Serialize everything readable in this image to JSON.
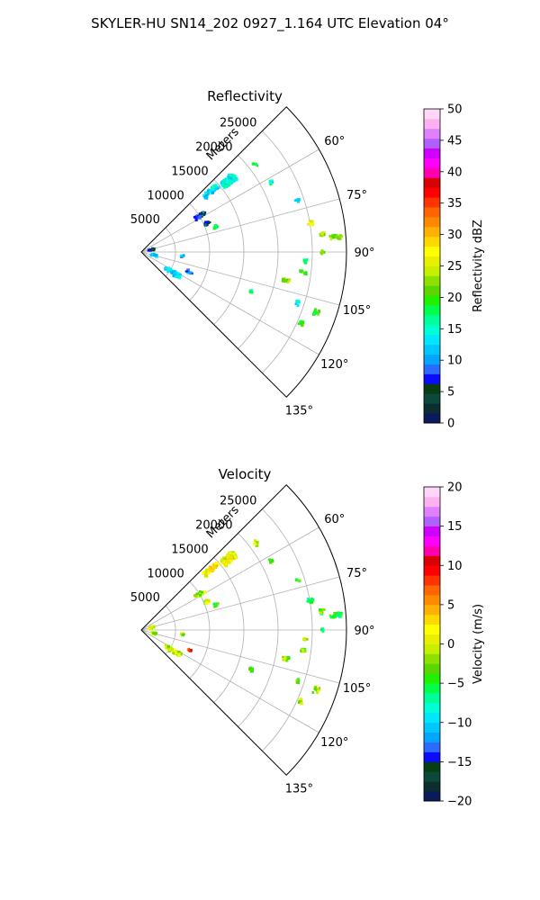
{
  "figure": {
    "title": "SKYLER-HU  SN14_202  0927_1.164 UTC Elevation 04°"
  },
  "chart_data": [
    {
      "type": "polar-sector",
      "title": "Reflectivity",
      "range_axis_label": "Meters",
      "range_ticks": [
        "5000",
        "10000",
        "15000",
        "20000",
        "25000"
      ],
      "range_tick_values": [
        5000,
        10000,
        15000,
        20000,
        25000
      ],
      "range_max": 30000,
      "azimuth_range_deg": [
        45,
        135
      ],
      "azimuth_ticks": [
        "60°",
        "75°",
        "90°",
        "105°",
        "120°",
        "135°"
      ],
      "azimuth_tick_values": [
        60,
        75,
        90,
        105,
        120,
        135
      ],
      "grid": true,
      "colorbar": {
        "label": "Reflectivity dBZ",
        "min": 0,
        "max": 50,
        "ticks": [
          "0",
          "5",
          "10",
          "15",
          "20",
          "25",
          "30",
          "35",
          "40",
          "45",
          "50"
        ],
        "colors": [
          "#0a1a5a",
          "#0c2e2e",
          "#0b4a3a",
          "#073f12",
          "#0b0bff",
          "#2b6bff",
          "#00a6ff",
          "#00c8ff",
          "#00e6ff",
          "#00ffd5",
          "#00ff9a",
          "#00ff4a",
          "#22f000",
          "#5cd600",
          "#8ee000",
          "#c6f000",
          "#e8f000",
          "#ffff00",
          "#ffd800",
          "#ffb000",
          "#ff8a00",
          "#ff6600",
          "#ff3300",
          "#ff0000",
          "#d80000",
          "#ff00b0",
          "#ff00ff",
          "#d000ff",
          "#b060ff",
          "#e080ff",
          "#ffb0f0",
          "#ffd6f6"
        ]
      },
      "echo_clusters": [
        {
          "az": 50.5,
          "r": 16500,
          "extent_r": 2200,
          "extent_az": 4,
          "value": 14,
          "n": 120
        },
        {
          "az": 48.5,
          "r": 13500,
          "extent_r": 2500,
          "extent_az": 3,
          "value": 13,
          "n": 45
        },
        {
          "az": 58,
          "r": 10200,
          "extent_r": 1800,
          "extent_az": 3,
          "value": 7,
          "n": 25
        },
        {
          "az": 66,
          "r": 10500,
          "extent_r": 800,
          "extent_az": 3,
          "value": 6,
          "n": 12
        },
        {
          "az": 71,
          "r": 11500,
          "extent_r": 600,
          "extent_az": 2,
          "value": 17,
          "n": 10
        },
        {
          "az": 52.5,
          "r": 21000,
          "extent_r": 600,
          "extent_az": 2,
          "value": 18,
          "n": 5
        },
        {
          "az": 62,
          "r": 21500,
          "extent_r": 500,
          "extent_az": 2,
          "value": 15,
          "n": 5
        },
        {
          "az": 72,
          "r": 24000,
          "extent_r": 600,
          "extent_az": 1.5,
          "value": 14,
          "n": 6
        },
        {
          "az": 80,
          "r": 25000,
          "extent_r": 800,
          "extent_az": 1.5,
          "value": 26,
          "n": 9
        },
        {
          "az": 84,
          "r": 26500,
          "extent_r": 700,
          "extent_az": 1.2,
          "value": 23,
          "n": 9
        },
        {
          "az": 85.5,
          "r": 28500,
          "extent_r": 1800,
          "extent_az": 1.2,
          "value": 22,
          "n": 24
        },
        {
          "az": 90,
          "r": 26400,
          "extent_r": 400,
          "extent_az": 1,
          "value": 22,
          "n": 6
        },
        {
          "az": 93,
          "r": 24000,
          "extent_r": 600,
          "extent_az": 1,
          "value": 18,
          "n": 7
        },
        {
          "az": 97,
          "r": 23800,
          "extent_r": 900,
          "extent_az": 1,
          "value": 20,
          "n": 10
        },
        {
          "az": 101,
          "r": 21500,
          "extent_r": 1000,
          "extent_az": 1.5,
          "value": 22,
          "n": 14
        },
        {
          "az": 108,
          "r": 24000,
          "extent_r": 500,
          "extent_az": 1.5,
          "value": 14,
          "n": 6
        },
        {
          "az": 109,
          "r": 27000,
          "extent_r": 800,
          "extent_az": 2,
          "value": 20,
          "n": 12
        },
        {
          "az": 114,
          "r": 25500,
          "extent_r": 500,
          "extent_az": 1.5,
          "value": 19,
          "n": 8
        },
        {
          "az": 110,
          "r": 17000,
          "extent_r": 500,
          "extent_az": 2,
          "value": 16,
          "n": 6
        },
        {
          "az": 95,
          "r": 6000,
          "extent_r": 400,
          "extent_az": 2,
          "value": 11,
          "n": 6
        },
        {
          "az": 123,
          "r": 5500,
          "extent_r": 2600,
          "extent_az": 6,
          "value": 12,
          "n": 55
        },
        {
          "az": 112,
          "r": 7500,
          "extent_r": 800,
          "extent_az": 3,
          "value": 10,
          "n": 10
        },
        {
          "az": 102,
          "r": 1800,
          "extent_r": 800,
          "extent_az": 8,
          "value": 12,
          "n": 18
        },
        {
          "az": 75,
          "r": 1500,
          "extent_r": 900,
          "extent_az": 10,
          "value": 5,
          "n": 14
        }
      ]
    },
    {
      "type": "polar-sector",
      "title": "Velocity",
      "range_axis_label": "Meters",
      "range_ticks": [
        "5000",
        "10000",
        "15000",
        "20000",
        "25000"
      ],
      "range_tick_values": [
        5000,
        10000,
        15000,
        20000,
        25000
      ],
      "range_max": 30000,
      "azimuth_range_deg": [
        45,
        135
      ],
      "azimuth_ticks": [
        "60°",
        "75°",
        "90°",
        "105°",
        "120°",
        "135°"
      ],
      "azimuth_tick_values": [
        60,
        75,
        90,
        105,
        120,
        135
      ],
      "grid": true,
      "colorbar": {
        "label": "Velocity (m/s)",
        "min": -20,
        "max": 20,
        "ticks": [
          "−20",
          "−15",
          "−10",
          "−5",
          "0",
          "5",
          "10",
          "15",
          "20"
        ],
        "colors": [
          "#0a1a5a",
          "#0c2e2e",
          "#0b4a3a",
          "#073f12",
          "#0b0bff",
          "#2b6bff",
          "#00a6ff",
          "#00c8ff",
          "#00e6ff",
          "#00ffd5",
          "#00ff9a",
          "#00ff4a",
          "#22f000",
          "#5cd600",
          "#8ee000",
          "#c6f000",
          "#e8f000",
          "#ffff00",
          "#ffd800",
          "#ffb000",
          "#ff8a00",
          "#ff6600",
          "#ff3300",
          "#ff0000",
          "#d80000",
          "#ff00b0",
          "#ff00ff",
          "#d000ff",
          "#b060ff",
          "#e080ff",
          "#ffb0f0",
          "#ffd6f6"
        ]
      },
      "echo_clusters": [
        {
          "az": 50.5,
          "r": 16500,
          "extent_r": 2200,
          "extent_az": 4,
          "value": 1,
          "n": 120
        },
        {
          "az": 48.5,
          "r": 13500,
          "extent_r": 2500,
          "extent_az": 3,
          "value": 2,
          "n": 40
        },
        {
          "az": 58,
          "r": 10200,
          "extent_r": 1800,
          "extent_az": 3,
          "value": -1,
          "n": 22
        },
        {
          "az": 66,
          "r": 10500,
          "extent_r": 800,
          "extent_az": 3,
          "value": 0,
          "n": 10
        },
        {
          "az": 71,
          "r": 11500,
          "extent_r": 600,
          "extent_az": 2,
          "value": -3,
          "n": 10
        },
        {
          "az": 52.5,
          "r": 21000,
          "extent_r": 600,
          "extent_az": 2,
          "value": 0,
          "n": 5
        },
        {
          "az": 62,
          "r": 21500,
          "extent_r": 500,
          "extent_az": 2,
          "value": -2,
          "n": 5
        },
        {
          "az": 72,
          "r": 24000,
          "extent_r": 600,
          "extent_az": 1.5,
          "value": -3,
          "n": 6
        },
        {
          "az": 80,
          "r": 25000,
          "extent_r": 800,
          "extent_az": 1.5,
          "value": -5,
          "n": 9
        },
        {
          "az": 84,
          "r": 26500,
          "extent_r": 700,
          "extent_az": 1.2,
          "value": -4,
          "n": 9
        },
        {
          "az": 85.5,
          "r": 28500,
          "extent_r": 1800,
          "extent_az": 1.2,
          "value": -4,
          "n": 24
        },
        {
          "az": 90,
          "r": 26400,
          "extent_r": 400,
          "extent_az": 1,
          "value": -5,
          "n": 6
        },
        {
          "az": 93,
          "r": 24000,
          "extent_r": 600,
          "extent_az": 1,
          "value": -2,
          "n": 7
        },
        {
          "az": 97,
          "r": 23800,
          "extent_r": 900,
          "extent_az": 1,
          "value": -3,
          "n": 10
        },
        {
          "az": 101,
          "r": 21500,
          "extent_r": 1000,
          "extent_az": 1.5,
          "value": -2,
          "n": 14
        },
        {
          "az": 108,
          "r": 24000,
          "extent_r": 500,
          "extent_az": 1.5,
          "value": -4,
          "n": 6
        },
        {
          "az": 109,
          "r": 27000,
          "extent_r": 800,
          "extent_az": 2,
          "value": -1,
          "n": 12
        },
        {
          "az": 114,
          "r": 25500,
          "extent_r": 500,
          "extent_az": 1.5,
          "value": -2,
          "n": 8
        },
        {
          "az": 110,
          "r": 17000,
          "extent_r": 500,
          "extent_az": 2,
          "value": -3,
          "n": 6
        },
        {
          "az": 95,
          "r": 6000,
          "extent_r": 400,
          "extent_az": 2,
          "value": -1,
          "n": 6
        },
        {
          "az": 123,
          "r": 5500,
          "extent_r": 2600,
          "extent_az": 6,
          "value": 0,
          "n": 55
        },
        {
          "az": 112,
          "r": 7500,
          "extent_r": 800,
          "extent_az": 3,
          "value": 8,
          "n": 8
        },
        {
          "az": 102,
          "r": 1800,
          "extent_r": 800,
          "extent_az": 8,
          "value": -1,
          "n": 18
        },
        {
          "az": 75,
          "r": 1500,
          "extent_r": 900,
          "extent_az": 10,
          "value": 1,
          "n": 12
        }
      ]
    }
  ]
}
